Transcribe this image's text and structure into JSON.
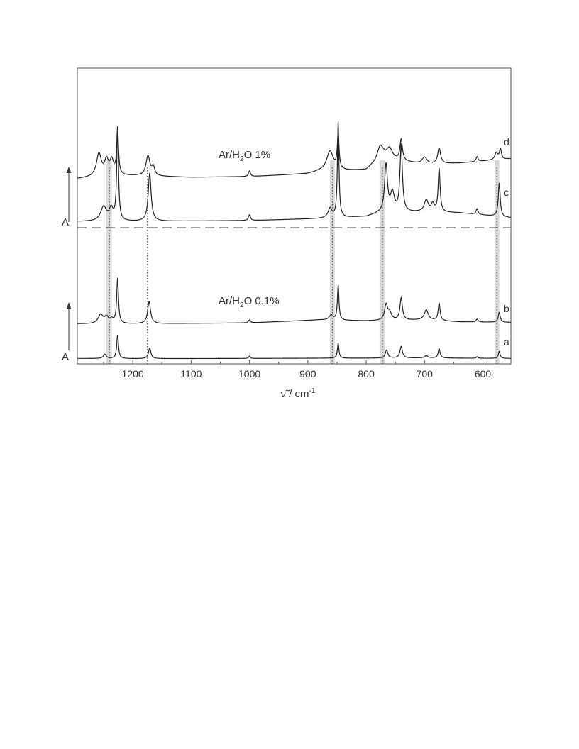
{
  "chart_data": {
    "type": "line",
    "xlabel_base": "ν̃ / cm",
    "xlabel_sup": "-1",
    "x_reversed": true,
    "xlim": [
      1295,
      552
    ],
    "xticks": [
      1200,
      1100,
      1000,
      900,
      800,
      700,
      600
    ],
    "yaxis_label": "A",
    "panels": [
      {
        "label_pre": "Ar/H",
        "label_sub": "2",
        "label_post": "O 1%",
        "traces": [
          "d",
          "c"
        ]
      },
      {
        "label_pre": "Ar/H",
        "label_sub": "2",
        "label_post": "O 0.1%",
        "traces": [
          "b",
          "a"
        ]
      }
    ],
    "series": [
      {
        "name": "d",
        "baseline": [
          [
            1295,
            0.02
          ],
          [
            1240,
            0.06
          ],
          [
            1190,
            0.06
          ],
          [
            1100,
            0.04
          ],
          [
            1000,
            0.05
          ],
          [
            900,
            0.09
          ],
          [
            880,
            0.12
          ],
          [
            800,
            0.14
          ],
          [
            790,
            0.2
          ],
          [
            770,
            0.3
          ],
          [
            700,
            0.22
          ],
          [
            640,
            0.24
          ],
          [
            555,
            0.3
          ]
        ],
        "peaks": [
          [
            1258,
            0.32,
            5
          ],
          [
            1245,
            0.2,
            4
          ],
          [
            1236,
            0.2,
            4
          ],
          [
            1226,
            0.65,
            1.8
          ],
          [
            1174,
            0.28,
            4
          ],
          [
            1165,
            0.12,
            3
          ],
          [
            1000,
            0.08,
            2
          ],
          [
            862,
            0.28,
            7
          ],
          [
            848,
            0.5,
            1.8
          ],
          [
            776,
            0.2,
            6
          ],
          [
            760,
            0.15,
            6
          ],
          [
            740,
            0.3,
            2.5
          ],
          [
            700,
            0.1,
            5
          ],
          [
            675,
            0.22,
            3
          ],
          [
            610,
            0.07,
            2
          ],
          [
            577,
            0.1,
            3
          ],
          [
            570,
            0.15,
            2
          ]
        ]
      },
      {
        "name": "c",
        "baseline": [
          [
            1295,
            0.02
          ],
          [
            1200,
            0.02
          ],
          [
            1000,
            0.03
          ],
          [
            880,
            0.05
          ],
          [
            800,
            0.07
          ],
          [
            780,
            0.1
          ],
          [
            700,
            0.12
          ],
          [
            640,
            0.11
          ],
          [
            555,
            0.06
          ]
        ],
        "peaks": [
          [
            1250,
            0.15,
            6
          ],
          [
            1237,
            0.12,
            4
          ],
          [
            1226,
            0.95,
            1.8
          ],
          [
            1171,
            0.5,
            3
          ],
          [
            1000,
            0.06,
            2
          ],
          [
            862,
            0.1,
            4
          ],
          [
            848,
            1.0,
            1.6
          ],
          [
            766,
            0.5,
            3
          ],
          [
            755,
            0.2,
            4
          ],
          [
            740,
            0.7,
            2.5
          ],
          [
            697,
            0.12,
            4
          ],
          [
            686,
            0.08,
            3
          ],
          [
            675,
            0.45,
            2
          ],
          [
            610,
            0.06,
            2
          ],
          [
            572,
            0.35,
            2
          ]
        ]
      },
      {
        "name": "b",
        "baseline": [
          [
            1295,
            0.02
          ],
          [
            1200,
            0.02
          ],
          [
            1000,
            0.04
          ],
          [
            880,
            0.1
          ],
          [
            800,
            0.08
          ],
          [
            700,
            0.1
          ],
          [
            640,
            0.06
          ],
          [
            555,
            0.05
          ]
        ],
        "peaks": [
          [
            1255,
            0.18,
            5
          ],
          [
            1245,
            0.12,
            4
          ],
          [
            1236,
            0.08,
            4
          ],
          [
            1226,
            0.9,
            1.8
          ],
          [
            1172,
            0.45,
            3
          ],
          [
            1000,
            0.06,
            2
          ],
          [
            860,
            0.1,
            4
          ],
          [
            848,
            0.7,
            1.6
          ],
          [
            766,
            0.3,
            3
          ],
          [
            760,
            0.15,
            4
          ],
          [
            740,
            0.45,
            2.5
          ],
          [
            697,
            0.2,
            4
          ],
          [
            675,
            0.35,
            2
          ],
          [
            610,
            0.06,
            2
          ],
          [
            572,
            0.2,
            2
          ]
        ]
      },
      {
        "name": "a",
        "baseline": [
          [
            1295,
            0.02
          ],
          [
            1200,
            0.01
          ],
          [
            1000,
            0.02
          ],
          [
            880,
            0.03
          ],
          [
            800,
            0.03
          ],
          [
            700,
            0.04
          ],
          [
            555,
            0.02
          ]
        ],
        "peaks": [
          [
            1248,
            0.18,
            3
          ],
          [
            1226,
            1.0,
            1.8
          ],
          [
            1171,
            0.45,
            2.5
          ],
          [
            1000,
            0.1,
            1.5
          ],
          [
            848,
            0.65,
            1.6
          ],
          [
            765,
            0.35,
            2.5
          ],
          [
            740,
            0.5,
            2.5
          ],
          [
            697,
            0.1,
            3
          ],
          [
            675,
            0.4,
            2
          ],
          [
            610,
            0.07,
            1.5
          ],
          [
            572,
            0.3,
            1.8
          ]
        ]
      }
    ],
    "shaded_bands": [
      [
        1245,
        1236
      ],
      [
        862,
        854
      ],
      [
        776,
        768
      ],
      [
        580,
        572
      ]
    ],
    "dotted_lines": [
      1240,
      1175,
      858,
      772,
      576
    ],
    "separator": "dashed"
  }
}
